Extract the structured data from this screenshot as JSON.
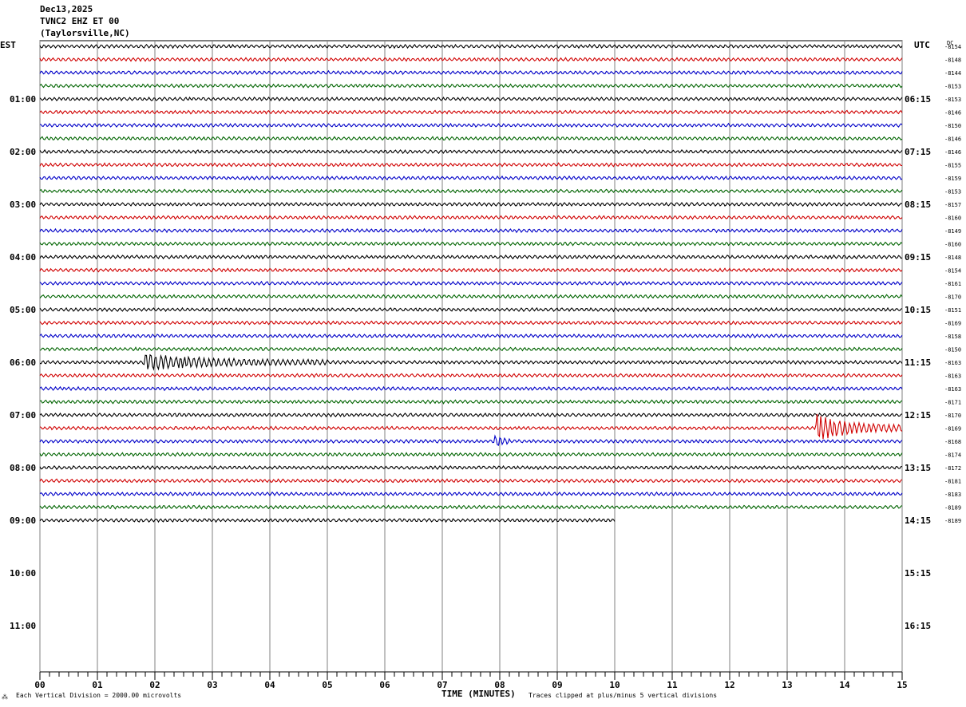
{
  "header": {
    "date": "Dec13,2025",
    "station": "TVNC2 EHZ ET 00",
    "location": "(Taylorsville,NC)"
  },
  "left_axis_label": "EST",
  "right_axis_label": "UTC",
  "dc_label": "DC",
  "footer": {
    "scale_note": "Each Vertical Division = 2000.00 microvolts",
    "x_title": "TIME (MINUTES)",
    "clip_note": "Traces clipped at plus/minus 5 vertical divisions"
  },
  "chart_data": {
    "type": "line",
    "title": "",
    "xlabel": "TIME (MINUTES)",
    "ylabel": "",
    "xlim": [
      0,
      15
    ],
    "x_ticks": [
      "00",
      "01",
      "02",
      "03",
      "04",
      "05",
      "06",
      "07",
      "08",
      "09",
      "10",
      "11",
      "12",
      "13",
      "14",
      "15"
    ],
    "grid": true,
    "left_hour_labels": [
      "01:00",
      "02:00",
      "03:00",
      "04:00",
      "05:00",
      "06:00",
      "07:00",
      "08:00",
      "09:00",
      "10:00",
      "11:00"
    ],
    "right_hour_labels": [
      "06:15",
      "07:15",
      "08:15",
      "09:15",
      "10:15",
      "11:15",
      "12:15",
      "13:15",
      "14:15",
      "15:15",
      "16:15"
    ],
    "trace_colors": [
      "#000000",
      "#d00000",
      "#0000c8",
      "#006400"
    ],
    "dc_offsets": [
      "-8154",
      "-8148",
      "-8144",
      "-8153",
      "-8153",
      "-8146",
      "-8150",
      "-8146",
      "-8146",
      "-8155",
      "-8159",
      "-8153",
      "-8157",
      "-8160",
      "-8149",
      "-8160",
      "-8148",
      "-8154",
      "-8161",
      "-8170",
      "-8151",
      "-8169",
      "-8158",
      "-8150",
      "-8163",
      "-8163",
      "-8163",
      "-8171",
      "-8170",
      "-8169",
      "-8168",
      "-8174",
      "-8172",
      "-8181",
      "-8183",
      "-8189",
      "-8189"
    ],
    "traces_count": 37,
    "last_trace_end_minute": 10,
    "events": [
      {
        "trace": 24,
        "start_minute": 1.8,
        "end_minute": 5.0,
        "amplitude_div": 0.9
      },
      {
        "trace": 29,
        "start_minute": 13.5,
        "end_minute": 15.0,
        "amplitude_div": 1.6
      },
      {
        "trace": 30,
        "start_minute": 7.9,
        "end_minute": 8.2,
        "amplitude_div": 0.8
      }
    ]
  }
}
